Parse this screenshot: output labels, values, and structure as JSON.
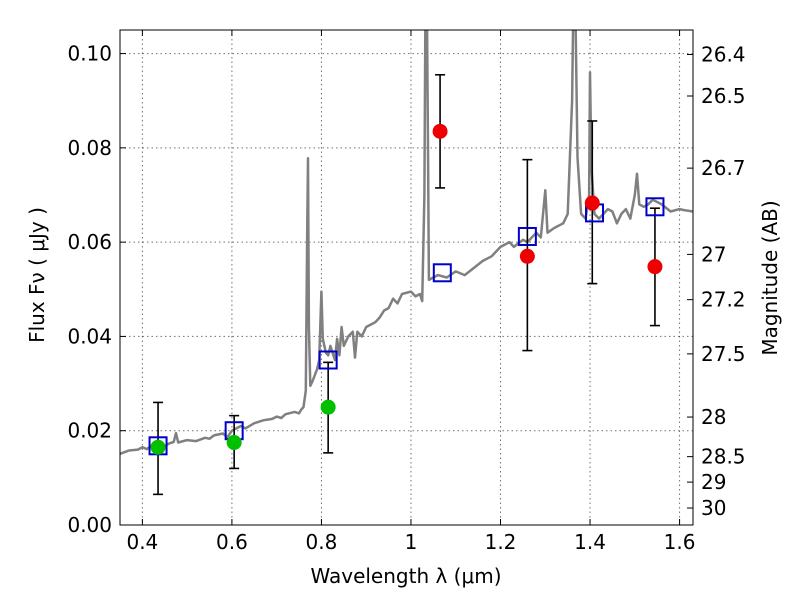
{
  "chart_data": {
    "type": "scatter",
    "title": "",
    "xlabel": "Wavelength  λ (μm)",
    "ylabel": "Flux  Fν  ( μJy )",
    "y2label": "Magnitude (AB)",
    "xlim": [
      0.35,
      1.63
    ],
    "ylim": [
      0.0,
      0.105
    ],
    "grid": true,
    "xticks": [
      0.4,
      0.6,
      0.8,
      1.0,
      1.2,
      1.4,
      1.6
    ],
    "xtick_labels": [
      "0.4",
      "0.6",
      "0.8",
      "1",
      "1.2",
      "1.4",
      "1.6"
    ],
    "yticks": [
      0.0,
      0.02,
      0.04,
      0.06,
      0.08,
      0.1
    ],
    "ytick_labels": [
      "0.00",
      "0.02",
      "0.04",
      "0.06",
      "0.08",
      "0.10"
    ],
    "magnitude_ticks": [
      {
        "label": "26.4",
        "flux": 0.0998
      },
      {
        "label": "26.5",
        "flux": 0.091
      },
      {
        "label": "26.7",
        "flux": 0.0757
      },
      {
        "label": "27",
        "flux": 0.0574
      },
      {
        "label": "27.2",
        "flux": 0.0478
      },
      {
        "label": "27.5",
        "flux": 0.0363
      },
      {
        "label": "28",
        "flux": 0.0229
      },
      {
        "label": "28.5",
        "flux": 0.0145
      },
      {
        "label": "29",
        "flux": 0.0091
      },
      {
        "label": "30",
        "flux": 0.0036
      }
    ],
    "series": [
      {
        "name": "model spectrum",
        "kind": "line",
        "color": "#808080",
        "points": [
          [
            0.35,
            0.0151
          ],
          [
            0.37,
            0.0158
          ],
          [
            0.39,
            0.016
          ],
          [
            0.4,
            0.0165
          ],
          [
            0.41,
            0.0161
          ],
          [
            0.42,
            0.0168
          ],
          [
            0.43,
            0.0164
          ],
          [
            0.44,
            0.017
          ],
          [
            0.45,
            0.0167
          ],
          [
            0.46,
            0.0173
          ],
          [
            0.47,
            0.0176
          ],
          [
            0.475,
            0.0195
          ],
          [
            0.48,
            0.0175
          ],
          [
            0.5,
            0.018
          ],
          [
            0.52,
            0.0178
          ],
          [
            0.54,
            0.0185
          ],
          [
            0.55,
            0.0183
          ],
          [
            0.56,
            0.019
          ],
          [
            0.58,
            0.0194
          ],
          [
            0.59,
            0.0186
          ],
          [
            0.6,
            0.02
          ],
          [
            0.62,
            0.021
          ],
          [
            0.63,
            0.0205
          ],
          [
            0.65,
            0.0216
          ],
          [
            0.67,
            0.0222
          ],
          [
            0.69,
            0.0225
          ],
          [
            0.7,
            0.023
          ],
          [
            0.71,
            0.0227
          ],
          [
            0.72,
            0.0235
          ],
          [
            0.74,
            0.024
          ],
          [
            0.75,
            0.0237
          ],
          [
            0.755,
            0.0245
          ],
          [
            0.76,
            0.025
          ],
          [
            0.765,
            0.0285
          ],
          [
            0.768,
            0.06
          ],
          [
            0.77,
            0.0778
          ],
          [
            0.772,
            0.042
          ],
          [
            0.775,
            0.0295
          ],
          [
            0.78,
            0.0305
          ],
          [
            0.79,
            0.033
          ],
          [
            0.795,
            0.035
          ],
          [
            0.8,
            0.0495
          ],
          [
            0.803,
            0.0395
          ],
          [
            0.81,
            0.0365
          ],
          [
            0.815,
            0.036
          ],
          [
            0.82,
            0.038
          ],
          [
            0.83,
            0.035
          ],
          [
            0.835,
            0.0395
          ],
          [
            0.84,
            0.036
          ],
          [
            0.845,
            0.042
          ],
          [
            0.85,
            0.038
          ],
          [
            0.86,
            0.04
          ],
          [
            0.87,
            0.041
          ],
          [
            0.875,
            0.0355
          ],
          [
            0.88,
            0.041
          ],
          [
            0.89,
            0.04
          ],
          [
            0.9,
            0.042
          ],
          [
            0.91,
            0.0425
          ],
          [
            0.92,
            0.043
          ],
          [
            0.93,
            0.044
          ],
          [
            0.94,
            0.0455
          ],
          [
            0.95,
            0.046
          ],
          [
            0.96,
            0.048
          ],
          [
            0.97,
            0.047
          ],
          [
            0.98,
            0.049
          ],
          [
            1.0,
            0.0495
          ],
          [
            1.01,
            0.0485
          ],
          [
            1.02,
            0.049
          ],
          [
            1.025,
            0.0475
          ],
          [
            1.03,
            0.07
          ],
          [
            1.032,
            0.105
          ],
          [
            1.036,
            0.105
          ],
          [
            1.038,
            0.08
          ],
          [
            1.04,
            0.052
          ],
          [
            1.06,
            0.053
          ],
          [
            1.08,
            0.0525
          ],
          [
            1.1,
            0.0538
          ],
          [
            1.12,
            0.053
          ],
          [
            1.14,
            0.0545
          ],
          [
            1.16,
            0.056
          ],
          [
            1.18,
            0.057
          ],
          [
            1.2,
            0.059
          ],
          [
            1.22,
            0.06
          ],
          [
            1.23,
            0.059
          ],
          [
            1.25,
            0.0605
          ],
          [
            1.26,
            0.06
          ],
          [
            1.28,
            0.062
          ],
          [
            1.29,
            0.061
          ],
          [
            1.3,
            0.071
          ],
          [
            1.305,
            0.062
          ],
          [
            1.32,
            0.063
          ],
          [
            1.34,
            0.064
          ],
          [
            1.35,
            0.066
          ],
          [
            1.36,
            0.09
          ],
          [
            1.362,
            0.105
          ],
          [
            1.368,
            0.105
          ],
          [
            1.372,
            0.078
          ],
          [
            1.38,
            0.066
          ],
          [
            1.39,
            0.065
          ],
          [
            1.398,
            0.07
          ],
          [
            1.4,
            0.096
          ],
          [
            1.403,
            0.076
          ],
          [
            1.41,
            0.066
          ],
          [
            1.42,
            0.065
          ],
          [
            1.44,
            0.067
          ],
          [
            1.45,
            0.0665
          ],
          [
            1.46,
            0.064
          ],
          [
            1.47,
            0.066
          ],
          [
            1.48,
            0.067
          ],
          [
            1.49,
            0.065
          ],
          [
            1.5,
            0.07
          ],
          [
            1.505,
            0.0745
          ],
          [
            1.51,
            0.068
          ],
          [
            1.52,
            0.0675
          ],
          [
            1.53,
            0.068
          ],
          [
            1.54,
            0.069
          ],
          [
            1.56,
            0.068
          ],
          [
            1.58,
            0.0665
          ],
          [
            1.6,
            0.067
          ],
          [
            1.61,
            0.0668
          ],
          [
            1.63,
            0.0665
          ]
        ]
      },
      {
        "name": "green photometry",
        "kind": "marker",
        "color": "#00c000",
        "points": [
          {
            "x": 0.435,
            "y": 0.0165,
            "yerr_low": 0.0065,
            "yerr_high": 0.026
          },
          {
            "x": 0.605,
            "y": 0.0175,
            "yerr_low": 0.012,
            "yerr_high": 0.0232
          },
          {
            "x": 0.815,
            "y": 0.025,
            "yerr_low": 0.0153,
            "yerr_high": 0.0345
          }
        ]
      },
      {
        "name": "red photometry",
        "kind": "marker",
        "color": "#ee0000",
        "points": [
          {
            "x": 1.065,
            "y": 0.0835,
            "yerr_low": 0.0715,
            "yerr_high": 0.0955
          },
          {
            "x": 1.26,
            "y": 0.057,
            "yerr_low": 0.037,
            "yerr_high": 0.0775
          },
          {
            "x": 1.405,
            "y": 0.0683,
            "yerr_low": 0.0512,
            "yerr_high": 0.0857
          },
          {
            "x": 1.545,
            "y": 0.0548,
            "yerr_low": 0.0423,
            "yerr_high": 0.0672
          }
        ]
      },
      {
        "name": "model band fluxes",
        "kind": "open-square",
        "color": "#0000cc",
        "points": [
          {
            "x": 0.435,
            "y": 0.0168
          },
          {
            "x": 0.605,
            "y": 0.02
          },
          {
            "x": 0.815,
            "y": 0.035
          },
          {
            "x": 1.07,
            "y": 0.0535
          },
          {
            "x": 1.26,
            "y": 0.0612
          },
          {
            "x": 1.41,
            "y": 0.0662
          },
          {
            "x": 1.545,
            "y": 0.0675
          }
        ]
      }
    ]
  }
}
